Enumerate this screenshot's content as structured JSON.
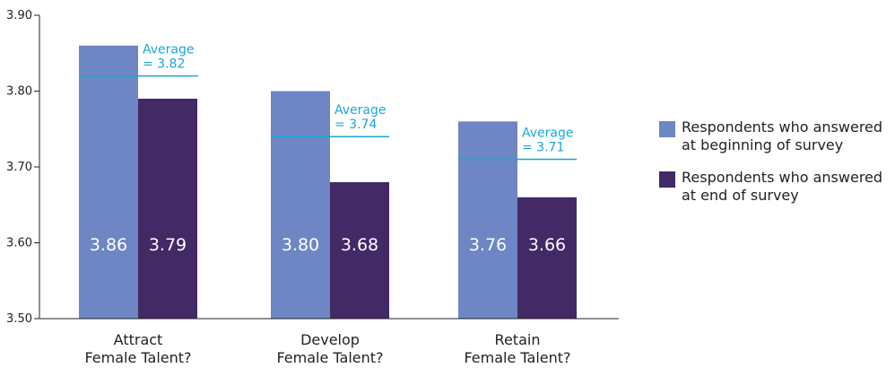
{
  "chart_data": {
    "type": "bar",
    "categories": [
      "Attract\nFemale Talent?",
      "Develop\nFemale Talent?",
      "Retain\nFemale Talent?"
    ],
    "series": [
      {
        "name": "Respondents who answered\nat beginning of survey",
        "values": [
          3.86,
          3.8,
          3.76
        ],
        "labels": [
          "3.86",
          "3.80",
          "3.76"
        ],
        "color": "#6f86c4"
      },
      {
        "name": "Respondents who answered\nat end of survey",
        "values": [
          3.79,
          3.68,
          3.66
        ],
        "labels": [
          "3.79",
          "3.68",
          "3.66"
        ],
        "color": "#432965"
      }
    ],
    "averages": [
      {
        "value": 3.82,
        "label": "Average\n= 3.82"
      },
      {
        "value": 3.74,
        "label": "Average\n= 3.74"
      },
      {
        "value": 3.71,
        "label": "Average\n= 3.71"
      }
    ],
    "average_color": "#1aa6d6",
    "ylim": [
      3.5,
      3.9
    ],
    "yticks": [
      "3.50",
      "3.60",
      "3.70",
      "3.80",
      "3.90"
    ],
    "legend_position": "right",
    "grid": false
  }
}
